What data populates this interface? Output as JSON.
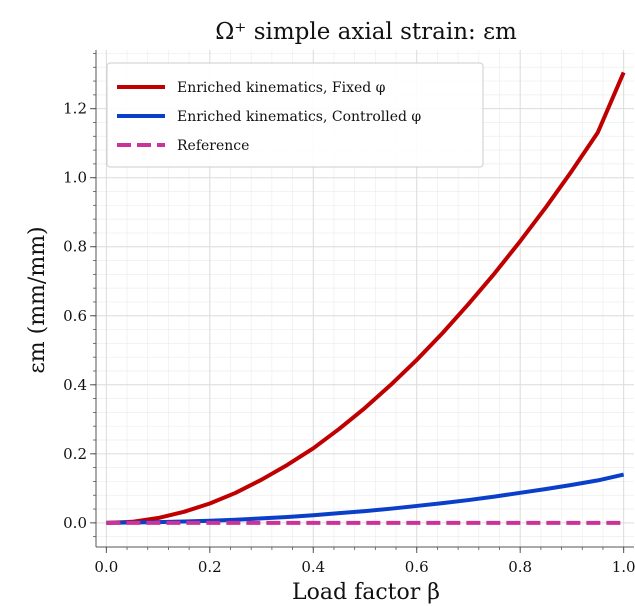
{
  "chart_data": {
    "type": "line",
    "title": "Ω⁺ simple axial strain: εm",
    "xlabel": "Load factor β",
    "ylabel": "εm (mm/mm)",
    "xlim": [
      -0.02,
      1.02
    ],
    "ylim": [
      -0.07,
      1.37
    ],
    "xticks": [
      0.0,
      0.2,
      0.4,
      0.6,
      0.8,
      1.0
    ],
    "xtick_labels": [
      "0.0",
      "0.2",
      "0.4",
      "0.6",
      "0.8",
      "1.0"
    ],
    "yticks": [
      0.0,
      0.2,
      0.4,
      0.6,
      0.8,
      1.0,
      1.2
    ],
    "ytick_labels": [
      "0.0",
      "0.2",
      "0.4",
      "0.6",
      "0.8",
      "1.0",
      "1.2"
    ],
    "grid": true,
    "legend_position": "top-left",
    "x": [
      0.0,
      0.05,
      0.1,
      0.15,
      0.2,
      0.25,
      0.3,
      0.35,
      0.4,
      0.45,
      0.5,
      0.55,
      0.6,
      0.65,
      0.7,
      0.75,
      0.8,
      0.85,
      0.9,
      0.95,
      1.0
    ],
    "series": [
      {
        "name": "Enriched kinematics, Fixed φ",
        "color": "#c00000",
        "style": "solid",
        "values": [
          0.0,
          0.003,
          0.014,
          0.032,
          0.056,
          0.087,
          0.125,
          0.168,
          0.216,
          0.272,
          0.333,
          0.4,
          0.472,
          0.55,
          0.634,
          0.722,
          0.816,
          0.915,
          1.02,
          1.131,
          1.305
        ]
      },
      {
        "name": "Enriched kinematics, Controlled φ",
        "color": "#0a3fc9",
        "style": "solid",
        "values": [
          0.0,
          0.001,
          0.002,
          0.004,
          0.006,
          0.009,
          0.013,
          0.017,
          0.022,
          0.028,
          0.034,
          0.041,
          0.049,
          0.057,
          0.066,
          0.076,
          0.087,
          0.098,
          0.11,
          0.123,
          0.14
        ]
      },
      {
        "name": "Reference",
        "color": "#cc3399",
        "style": "dashed",
        "values": [
          0.0,
          0.0,
          0.0,
          0.0,
          0.0,
          0.0,
          0.0,
          0.0,
          0.0,
          0.0,
          0.0,
          0.0,
          0.0,
          0.0,
          0.0,
          0.0,
          0.0,
          0.0,
          0.0,
          0.0,
          0.0
        ]
      }
    ]
  }
}
